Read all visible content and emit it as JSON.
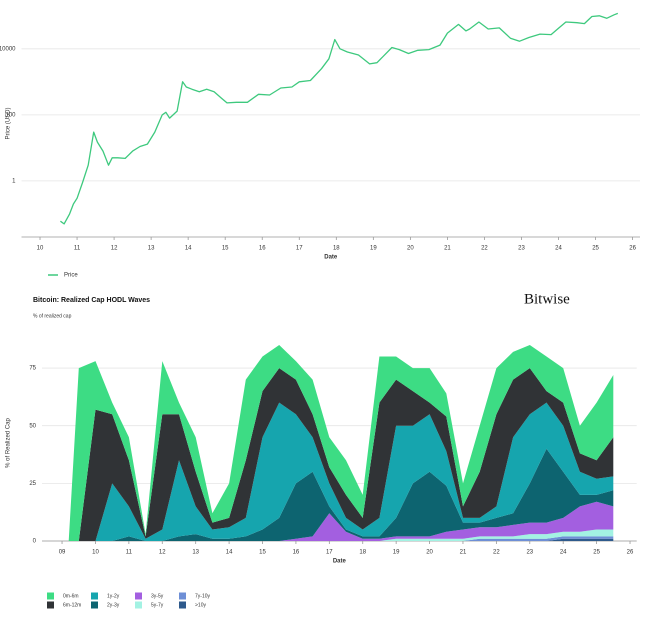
{
  "chart_data": [
    {
      "type": "line",
      "x_label": "Date",
      "y_label": "Price (USD)",
      "log_scale": true,
      "grid": true,
      "xlim": [
        9.5,
        26.2
      ],
      "xticks": [
        10,
        11,
        12,
        13,
        14,
        15,
        16,
        17,
        18,
        19,
        20,
        21,
        22,
        23,
        24,
        25,
        26
      ],
      "ylim": [
        0.02,
        150000
      ],
      "yticks": [
        1,
        100,
        10000
      ],
      "x": [
        10.55,
        10.65,
        10.8,
        10.9,
        11.0,
        11.15,
        11.3,
        11.45,
        11.55,
        11.7,
        11.85,
        11.95,
        12.1,
        12.3,
        12.5,
        12.7,
        12.9,
        13.1,
        13.3,
        13.4,
        13.5,
        13.7,
        13.85,
        13.95,
        14.1,
        14.3,
        14.5,
        14.7,
        14.9,
        15.05,
        15.3,
        15.6,
        15.9,
        16.2,
        16.5,
        16.8,
        17.0,
        17.3,
        17.6,
        17.8,
        17.96,
        18.1,
        18.3,
        18.6,
        18.9,
        19.1,
        19.5,
        19.7,
        19.95,
        20.2,
        20.5,
        20.8,
        21.0,
        21.3,
        21.5,
        21.6,
        21.85,
        22.1,
        22.4,
        22.7,
        22.95,
        23.2,
        23.5,
        23.8,
        24.0,
        24.2,
        24.5,
        24.7,
        24.9,
        25.1,
        25.3,
        25.5,
        25.6
      ],
      "series": [
        {
          "name": "Price",
          "color": "#3ec97e",
          "values": [
            0.06,
            0.05,
            0.1,
            0.2,
            0.3,
            0.9,
            3,
            30,
            15,
            8,
            3,
            5,
            5,
            4.8,
            8,
            11,
            13,
            30,
            100,
            120,
            80,
            130,
            1000,
            700,
            600,
            500,
            600,
            500,
            320,
            230,
            240,
            240,
            420,
            400,
            650,
            700,
            1000,
            1100,
            2500,
            5000,
            19000,
            10000,
            8000,
            6500,
            3500,
            3800,
            11000,
            9500,
            7200,
            9000,
            9500,
            13000,
            30000,
            55000,
            35000,
            40000,
            65000,
            40000,
            43000,
            21000,
            17000,
            22000,
            28000,
            27000,
            42000,
            65000,
            62000,
            58000,
            95000,
            100000,
            84000,
            107000,
            118000
          ]
        }
      ]
    },
    {
      "type": "area",
      "stacked": true,
      "title": "Bitcoin: Realized Cap HODL Waves",
      "subtitle": "% of realized cap",
      "brand": "Bitwise",
      "x_label": "Date",
      "y_label": "% of Realized Cap",
      "grid": true,
      "xlim": [
        8.4,
        26.2
      ],
      "xticks": [
        {
          "value": 9,
          "label": "09"
        },
        10,
        11,
        12,
        13,
        14,
        15,
        16,
        17,
        18,
        19,
        20,
        21,
        22,
        23,
        24,
        25,
        26
      ],
      "ylim": [
        0,
        85
      ],
      "yticks": [
        0,
        25,
        50,
        75
      ],
      "x": [
        9.2,
        9.5,
        10,
        10.5,
        11,
        11.5,
        12,
        12.5,
        13,
        13.5,
        14,
        14.5,
        15,
        15.5,
        16,
        16.5,
        17,
        17.5,
        18,
        18.5,
        19,
        19.5,
        20,
        20.5,
        21,
        21.5,
        22,
        22.5,
        23,
        23.5,
        24,
        24.5,
        25,
        25.5
      ],
      "series": [
        {
          "name": "0m-6m",
          "color": "#3ddc84",
          "values": [
            0,
            75,
            21,
            5,
            10,
            1,
            23,
            5,
            15,
            4,
            15,
            35,
            15,
            10,
            8,
            15,
            13,
            15,
            10,
            20,
            10,
            10,
            15,
            10,
            10,
            20,
            20,
            12,
            10,
            15,
            15,
            12,
            25,
            27
          ]
        },
        {
          "name": "6m-12m",
          "color": "#303336",
          "values": [
            0,
            0,
            57,
            30,
            20,
            1,
            50,
            20,
            15,
            3,
            4,
            25,
            20,
            15,
            15,
            10,
            7,
            10,
            5,
            50,
            20,
            15,
            5,
            15,
            5,
            20,
            40,
            25,
            20,
            5,
            10,
            8,
            8,
            17
          ]
        },
        {
          "name": "1y-2y",
          "color": "#16a5ae",
          "values": [
            0,
            0,
            0,
            25,
            13,
            1,
            5,
            33,
            12,
            4,
            5,
            8,
            40,
            50,
            30,
            15,
            10,
            5,
            3,
            8,
            40,
            25,
            25,
            15,
            2,
            2,
            5,
            33,
            30,
            20,
            20,
            10,
            7,
            6
          ]
        },
        {
          "name": "2y-3y",
          "color": "#0d6470",
          "values": [
            0,
            0,
            0,
            0,
            2,
            0,
            0,
            2,
            3,
            1,
            1,
            2,
            5,
            10,
            24,
            28,
            3,
            1,
            1,
            1,
            8,
            23,
            28,
            20,
            3,
            2,
            4,
            5,
            17,
            32,
            20,
            5,
            3,
            7
          ]
        },
        {
          "name": "3y-5y",
          "color": "#a35fe0",
          "values": [
            0,
            0,
            0,
            0,
            0,
            0,
            0,
            0,
            0,
            0,
            0,
            0,
            0,
            0,
            1,
            2,
            12,
            4,
            1,
            1,
            1,
            1,
            1,
            3,
            4,
            4,
            4,
            5,
            5,
            5,
            6,
            11,
            12,
            10
          ]
        },
        {
          "name": "5y-7y",
          "color": "#a3f2e3",
          "values": [
            0,
            0,
            0,
            0,
            0,
            0,
            0,
            0,
            0,
            0,
            0,
            0,
            0,
            0,
            0,
            0,
            0,
            0,
            0,
            0,
            1,
            1,
            1,
            1,
            1,
            1,
            1,
            1,
            2,
            2,
            2,
            2,
            3,
            3
          ]
        },
        {
          "name": "7y-10y",
          "color": "#6e8fd6",
          "values": [
            0,
            0,
            0,
            0,
            0,
            0,
            0,
            0,
            0,
            0,
            0,
            0,
            0,
            0,
            0,
            0,
            0,
            0,
            0,
            0,
            0,
            0,
            0,
            0,
            0,
            1,
            1,
            1,
            1,
            1,
            1,
            1,
            1,
            1
          ]
        },
        {
          "name": ">10y",
          "color": "#2e5a8c",
          "values": [
            0,
            0,
            0,
            0,
            0,
            0,
            0,
            0,
            0,
            0,
            0,
            0,
            0,
            0,
            0,
            0,
            0,
            0,
            0,
            0,
            0,
            0,
            0,
            0,
            0,
            0,
            0,
            0,
            0,
            0,
            1,
            1,
            1,
            1
          ]
        }
      ]
    }
  ]
}
